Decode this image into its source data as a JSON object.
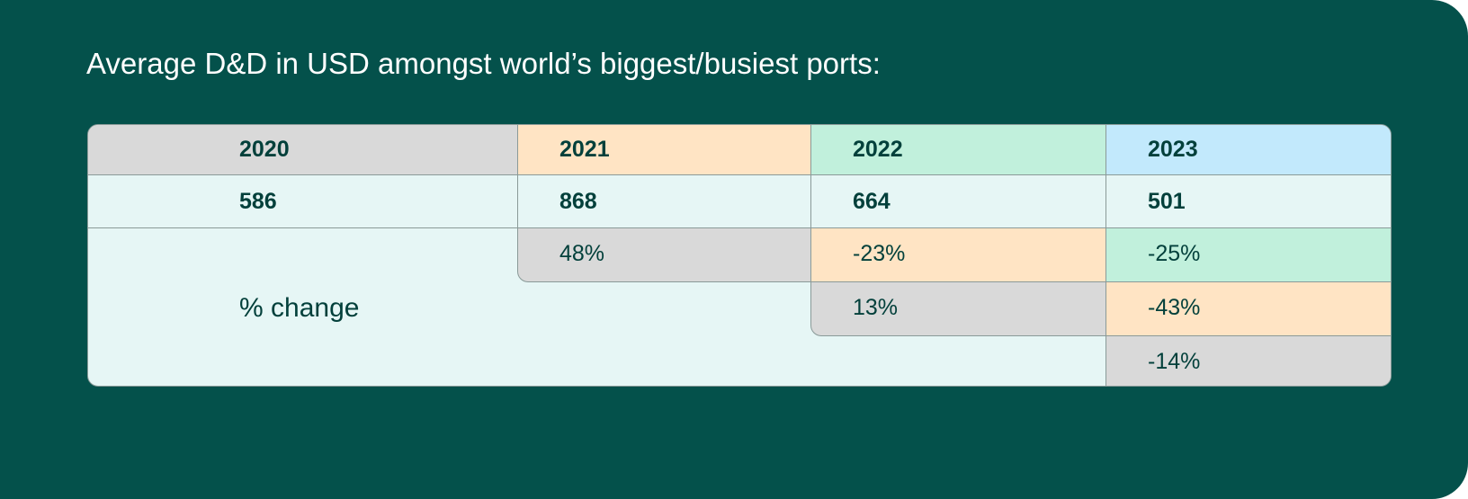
{
  "title": "Average D&D in USD amongst world’s biggest/busiest ports:",
  "table": {
    "years": [
      "2020",
      "2021",
      "2022",
      "2023"
    ],
    "values": [
      "586",
      "868",
      "664",
      "501"
    ],
    "change_label": "% change",
    "changes": {
      "row1": [
        "48%",
        "-23%",
        "-25%"
      ],
      "row2": [
        "13%",
        "-43%"
      ],
      "row3": [
        "-14%"
      ]
    }
  },
  "colors": {
    "background": "#04514b",
    "gray": "#d9d9d9",
    "orange": "#ffe4c4",
    "green": "#c1f0dc",
    "blue": "#c2e9fc",
    "light": "#e6f6f5",
    "text": "#03403b"
  }
}
